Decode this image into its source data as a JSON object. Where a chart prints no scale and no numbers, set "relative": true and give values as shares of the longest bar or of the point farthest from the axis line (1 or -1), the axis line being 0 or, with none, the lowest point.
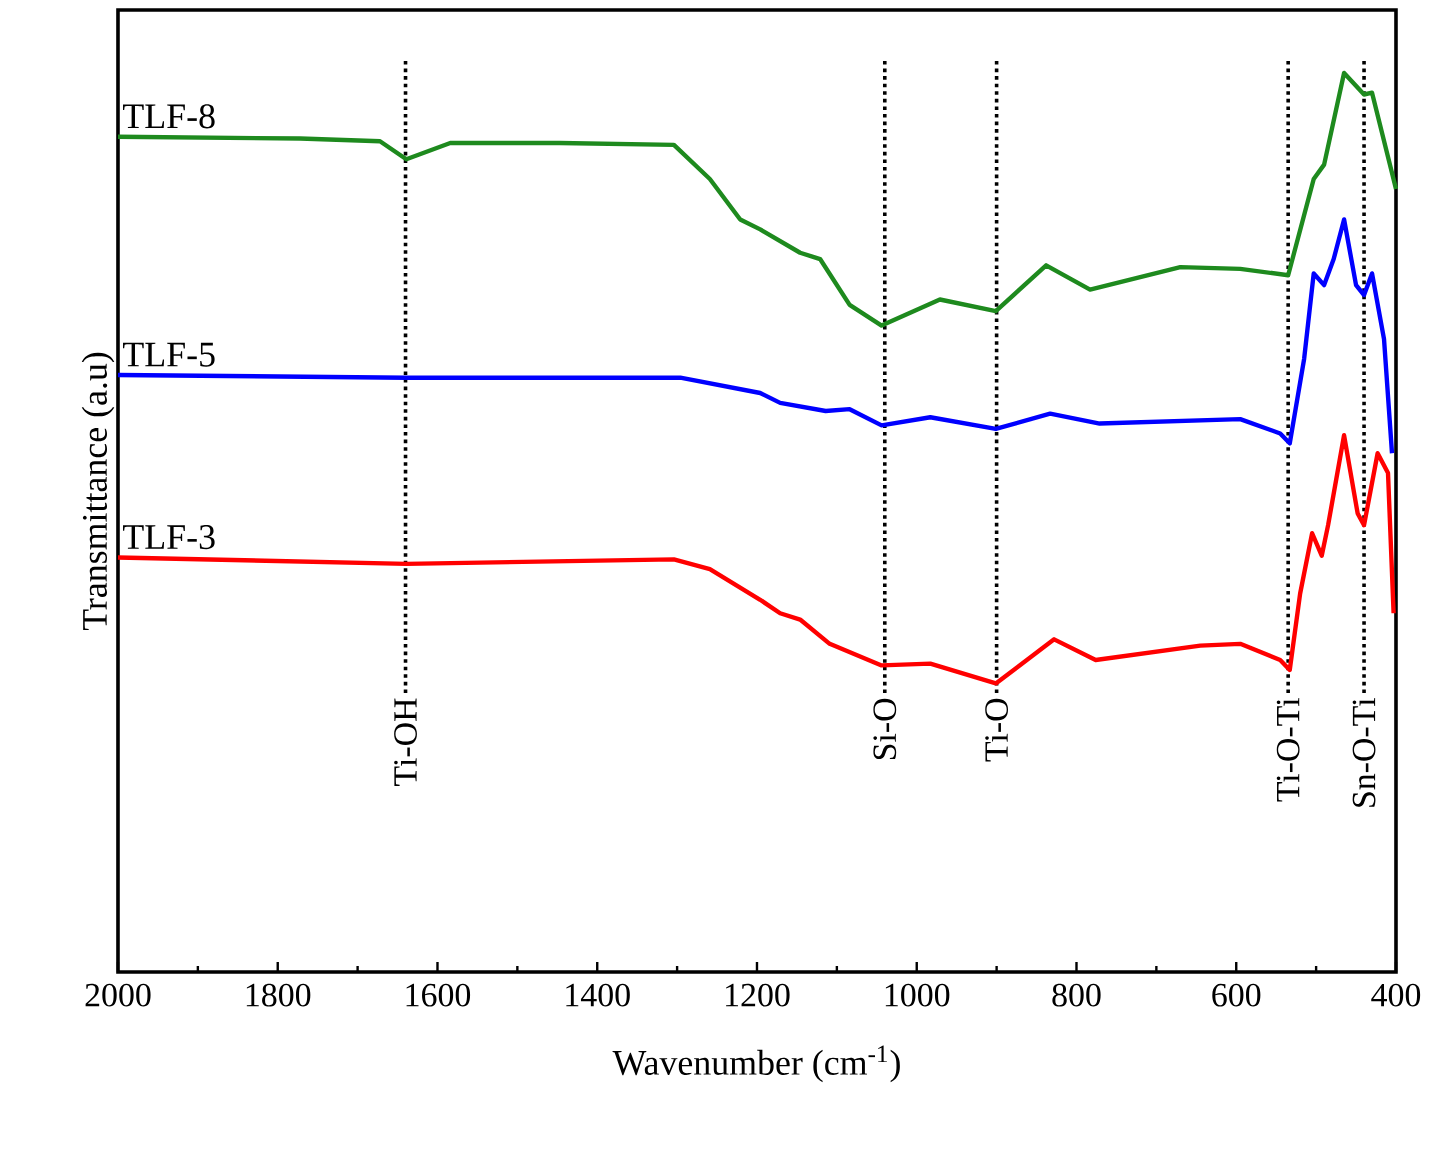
{
  "chart_data": {
    "type": "line",
    "relative": true,
    "xlabel": "Wavenumber (cm$^{-1}$)",
    "ylabel": "Transmittance (a.u)",
    "xlim": [
      2000,
      400
    ],
    "xticks": [
      2000,
      1800,
      1600,
      1400,
      1200,
      1000,
      800,
      600,
      400
    ],
    "series": [
      {
        "name": "TLF-8",
        "color": "#1e8a1e",
        "x": [
          2000,
          1772,
          1672,
          1639,
          1584,
          1447,
          1304,
          1259,
          1221,
          1196,
          1146,
          1121,
          1084,
          1044,
          971,
          901,
          838,
          783,
          670,
          595,
          535,
          503,
          490,
          465,
          440,
          430,
          400
        ],
        "values": [
          0.929,
          0.927,
          0.924,
          0.904,
          0.922,
          0.922,
          0.92,
          0.882,
          0.837,
          0.826,
          0.8,
          0.793,
          0.742,
          0.719,
          0.748,
          0.735,
          0.786,
          0.759,
          0.784,
          0.782,
          0.775,
          0.882,
          0.898,
          1.0,
          0.976,
          0.978,
          0.871
        ]
      },
      {
        "name": "TLF-5",
        "color": "#0000ff",
        "x": [
          2000,
          1639,
          1296,
          1196,
          1171,
          1114,
          1084,
          1044,
          983,
          901,
          833,
          771,
          595,
          545,
          533,
          515,
          503,
          490,
          478,
          465,
          450,
          440,
          430,
          415,
          405
        ],
        "values": [
          0.664,
          0.661,
          0.661,
          0.644,
          0.633,
          0.624,
          0.626,
          0.608,
          0.617,
          0.604,
          0.621,
          0.61,
          0.615,
          0.599,
          0.588,
          0.682,
          0.777,
          0.764,
          0.793,
          0.837,
          0.764,
          0.753,
          0.777,
          0.704,
          0.577
        ]
      },
      {
        "name": "TLF-3",
        "color": "#ff0000",
        "x": [
          2000,
          1639,
          1304,
          1259,
          1196,
          1171,
          1146,
          1109,
          1044,
          983,
          901,
          828,
          776,
          645,
          595,
          545,
          533,
          520,
          505,
          493,
          485,
          465,
          448,
          440,
          423,
          410,
          403
        ],
        "values": [
          0.461,
          0.454,
          0.459,
          0.448,
          0.414,
          0.399,
          0.392,
          0.365,
          0.341,
          0.343,
          0.321,
          0.37,
          0.347,
          0.363,
          0.365,
          0.347,
          0.336,
          0.421,
          0.488,
          0.463,
          0.497,
          0.597,
          0.51,
          0.497,
          0.577,
          0.555,
          0.399
        ]
      }
    ],
    "ref_lines": [
      {
        "axis": "x",
        "value": 1640,
        "label": "Ti-OH",
        "color": "#000000",
        "line_style": "dotted"
      },
      {
        "axis": "x",
        "value": 1040,
        "label": "Si-O",
        "color": "#000000",
        "line_style": "dotted"
      },
      {
        "axis": "x",
        "value": 900,
        "label": "Ti-O",
        "color": "#000000",
        "line_style": "dotted"
      },
      {
        "axis": "x",
        "value": 535,
        "label": "Ti-O-Ti",
        "color": "#000000",
        "line_style": "dotted"
      },
      {
        "axis": "x",
        "value": 440,
        "label": "Sn-O-Ti",
        "color": "#000000",
        "line_style": "dotted"
      }
    ]
  }
}
